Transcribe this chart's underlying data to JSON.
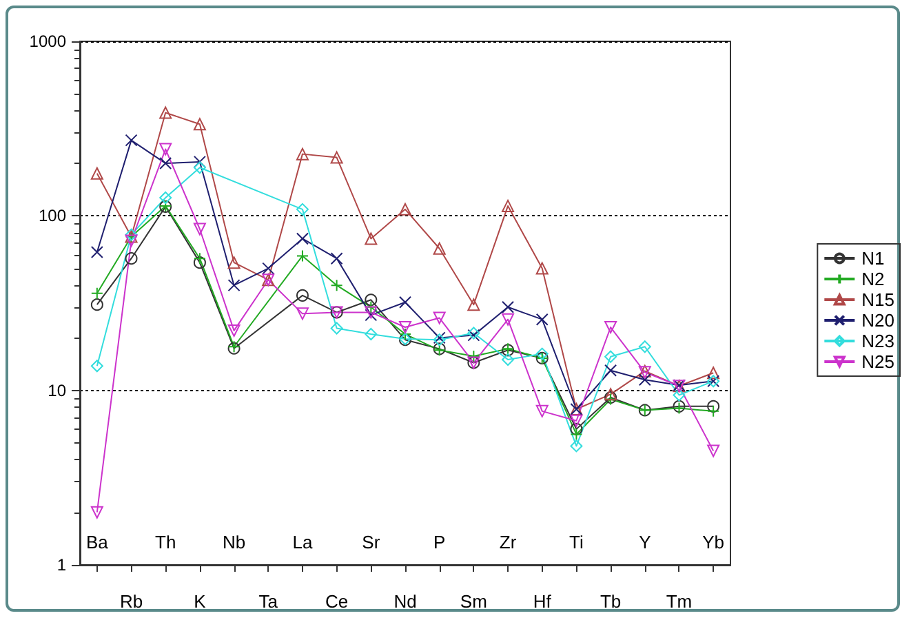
{
  "chart_data": {
    "type": "line",
    "categories": [
      "Ba",
      "Rb",
      "Th",
      "K",
      "Nb",
      "Ta",
      "La",
      "Ce",
      "Sr",
      "Nd",
      "P",
      "Sm",
      "Zr",
      "Hf",
      "Ti",
      "Tb",
      "Y",
      "Tm",
      "Yb"
    ],
    "log": "y",
    "ylim": [
      1,
      1000
    ],
    "yticks": [
      1,
      10,
      100,
      1000
    ],
    "grid": "y",
    "legend": "right",
    "line_style": "solid",
    "series": [
      {
        "name": "N1",
        "color": "#333333",
        "marker": "circle",
        "values": [
          31,
          57,
          113,
          54,
          17.4,
          null,
          35,
          28,
          33,
          19.5,
          17.3,
          14.4,
          17,
          15.3,
          6,
          9.1,
          7.7,
          8.1,
          8.1
        ]
      },
      {
        "name": "N2",
        "color": "#22aa22",
        "marker": "plus",
        "values": [
          36,
          76,
          114,
          57,
          17.8,
          null,
          59,
          40,
          30,
          21,
          17,
          15.7,
          17.3,
          15.3,
          5.6,
          8.9,
          7.7,
          7.9,
          7.6
        ]
      },
      {
        "name": "N15",
        "color": "#b04848",
        "marker": "triangle",
        "values": [
          175,
          76,
          390,
          335,
          54,
          43,
          226,
          216,
          74,
          109,
          65,
          31,
          114,
          50,
          7.8,
          9.5,
          12.9,
          10.6,
          12.6
        ]
      },
      {
        "name": "N20",
        "color": "#1f1f6f",
        "marker": "x",
        "values": [
          62,
          271,
          200,
          204,
          40,
          50,
          74,
          57,
          27,
          32,
          20,
          20.7,
          30,
          25.5,
          7.8,
          13,
          11.5,
          10.7,
          11.3
        ]
      },
      {
        "name": "N23",
        "color": "#33dddd",
        "marker": "diamond",
        "values": [
          13.8,
          78,
          127,
          189,
          null,
          null,
          109,
          22.7,
          21,
          19.7,
          19.5,
          21.3,
          15,
          16.2,
          4.8,
          15.6,
          17.8,
          9.4,
          11.3
        ]
      },
      {
        "name": "N25",
        "color": "#cc33cc",
        "marker": "triangle-down",
        "values": [
          2,
          72,
          241,
          84,
          22,
          43,
          27.5,
          28,
          28,
          23,
          26,
          14.4,
          25.5,
          7.6,
          6.7,
          23,
          12.7,
          10.6,
          4.5
        ]
      }
    ]
  }
}
